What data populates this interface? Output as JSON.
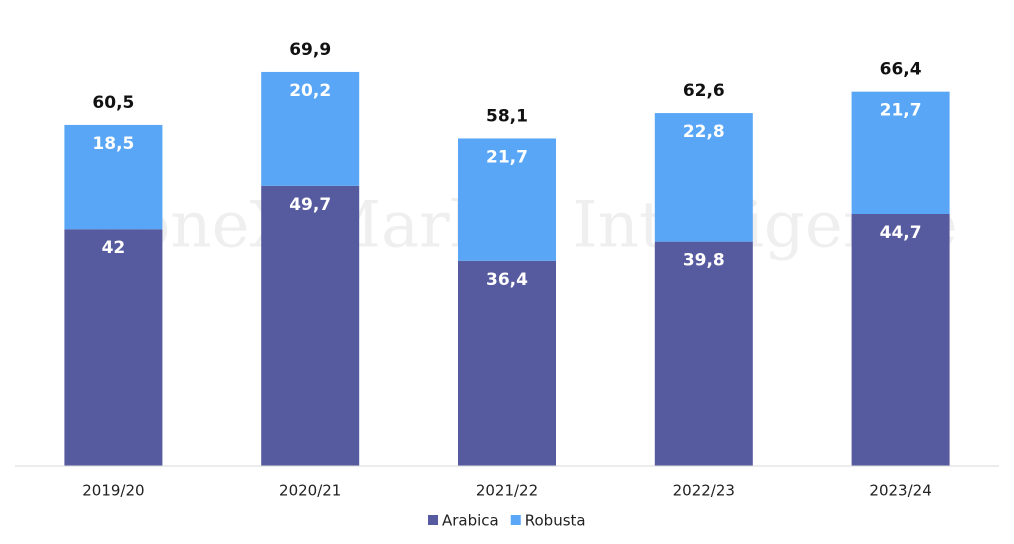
{
  "chart_data": {
    "type": "stacked_bar",
    "watermark": "StoneX Market Intelligence",
    "categories": [
      "2019/20",
      "2020/21",
      "2021/22",
      "2022/23",
      "2023/24"
    ],
    "series": [
      {
        "name": "Arabica",
        "color": "#565a9e",
        "values": [
          42,
          49.7,
          36.4,
          39.8,
          44.7
        ],
        "value_labels": [
          "42",
          "49,7",
          "36,4",
          "39,8",
          "44,7"
        ]
      },
      {
        "name": "Robusta",
        "color": "#58a6f5",
        "values": [
          18.5,
          20.2,
          21.7,
          22.8,
          21.7
        ],
        "value_labels": [
          "18,5",
          "20,2",
          "21,7",
          "22,8",
          "21,7"
        ]
      }
    ],
    "totals": [
      60.5,
      69.9,
      58.1,
      62.6,
      66.4
    ],
    "total_labels": [
      "60,5",
      "69,9",
      "58,1",
      "62,6",
      "66,4"
    ],
    "ylim": [
      0,
      80
    ]
  }
}
